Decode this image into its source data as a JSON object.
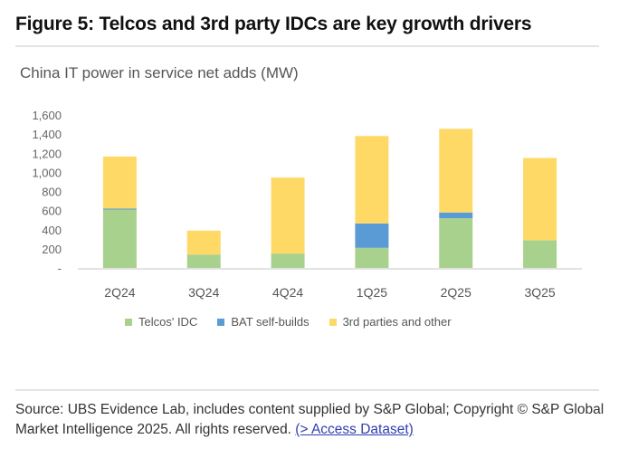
{
  "figure": {
    "title": "Figure 5: Telcos and 3rd party IDCs are key growth drivers",
    "subtitle": "China IT power in service net adds (MW)"
  },
  "source": {
    "text": "Source: UBS Evidence Lab, includes content supplied by S&P Global; Copyright © S&P Global Market Intelligence 2025. All rights reserved. ",
    "link_label": "(> Access Dataset)"
  },
  "chart_data": {
    "type": "bar",
    "stacked": true,
    "title": "China IT power in service net adds (MW)",
    "xlabel": "",
    "ylabel": "",
    "categories": [
      "2Q24",
      "3Q24",
      "4Q24",
      "1Q25",
      "2Q25",
      "3Q25"
    ],
    "ylim": [
      0,
      1600
    ],
    "yticks": [
      0,
      200,
      400,
      600,
      800,
      1000,
      1200,
      1400,
      1600
    ],
    "ytick_labels": [
      "-",
      "200",
      "400",
      "600",
      "800",
      "1,000",
      "1,200",
      "1,400",
      "1,600"
    ],
    "grid": false,
    "legend_position": "bottom",
    "series": [
      {
        "name": "Telcos' IDC",
        "color": "#a9d18e",
        "values": [
          610,
          140,
          150,
          210,
          520,
          290
        ]
      },
      {
        "name": "BAT self-builds",
        "color": "#5b9bd5",
        "values": [
          10,
          0,
          0,
          255,
          60,
          0
        ]
      },
      {
        "name": "3rd parties and other",
        "color": "#ffd966",
        "values": [
          545,
          250,
          795,
          915,
          875,
          860
        ]
      }
    ]
  }
}
